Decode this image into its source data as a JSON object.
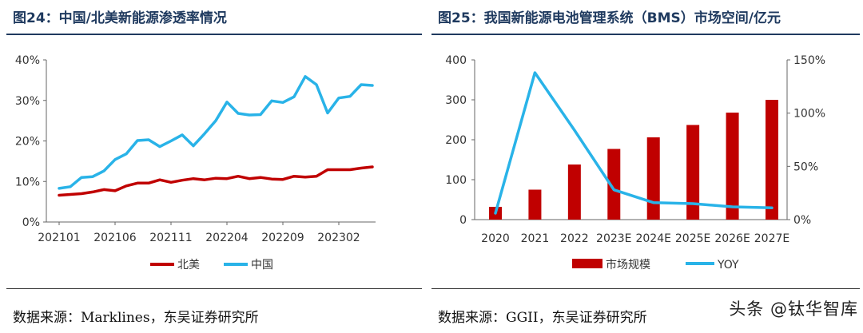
{
  "left": {
    "title": "图24：中国/北美新能源渗透率情况",
    "source": "数据来源：Marklines，东吴证券研究所",
    "chart_data": {
      "type": "line",
      "x_ticks": [
        "202101",
        "202106",
        "202111",
        "202204",
        "202209",
        "202302"
      ],
      "ylim": [
        0,
        40
      ],
      "y_ticks": [
        0,
        10,
        20,
        30,
        40
      ],
      "y_tick_labels": [
        "0%",
        "10%",
        "20%",
        "30%",
        "40%"
      ],
      "legend_position": "bottom",
      "series": [
        {
          "name": "北美",
          "color": "#c00000",
          "values": [
            6.6,
            6.8,
            7.0,
            7.4,
            8.0,
            7.7,
            8.9,
            9.6,
            9.6,
            10.4,
            9.8,
            10.3,
            10.7,
            10.4,
            10.8,
            10.7,
            11.3,
            10.7,
            11.0,
            10.6,
            10.5,
            11.3,
            11.1,
            11.3,
            12.9,
            12.9,
            12.9,
            13.3,
            13.6
          ]
        },
        {
          "name": "中国",
          "color": "#29b3e8",
          "values": [
            8.3,
            8.7,
            11.0,
            11.2,
            12.6,
            15.4,
            16.8,
            20.1,
            20.3,
            18.6,
            20.0,
            21.5,
            18.8,
            21.8,
            25.0,
            29.6,
            26.8,
            26.4,
            26.5,
            29.9,
            29.5,
            30.9,
            35.9,
            33.9,
            26.9,
            30.6,
            31.0,
            33.9,
            33.7
          ]
        }
      ]
    }
  },
  "right": {
    "title": "图25：我国新能源电池管理系统（BMS）市场空间/亿元",
    "source": "数据来源：GGII，东吴证券研究所",
    "chart_data": {
      "type": "bar",
      "categories": [
        "2020",
        "2021",
        "2022",
        "2023E",
        "2024E",
        "2025E",
        "2026E",
        "2027E"
      ],
      "ylim_left": [
        0,
        400
      ],
      "y_ticks_left": [
        0,
        100,
        200,
        300,
        400
      ],
      "ylim_right": [
        0,
        150
      ],
      "y_ticks_right": [
        0,
        50,
        100,
        150
      ],
      "y_tick_labels_right": [
        "0%",
        "50%",
        "100%",
        "150%"
      ],
      "legend_position": "bottom",
      "series": [
        {
          "name": "市场规模",
          "type": "bar",
          "axis": "left",
          "color": "#c00000",
          "values": [
            32,
            75,
            138,
            177,
            206,
            237,
            268,
            300
          ]
        },
        {
          "name": "YOY",
          "type": "line",
          "axis": "right",
          "color": "#29b3e8",
          "values": [
            6,
            138,
            84,
            28,
            16,
            15,
            12,
            11
          ]
        }
      ]
    }
  },
  "watermark": "头条 @钛华智库"
}
